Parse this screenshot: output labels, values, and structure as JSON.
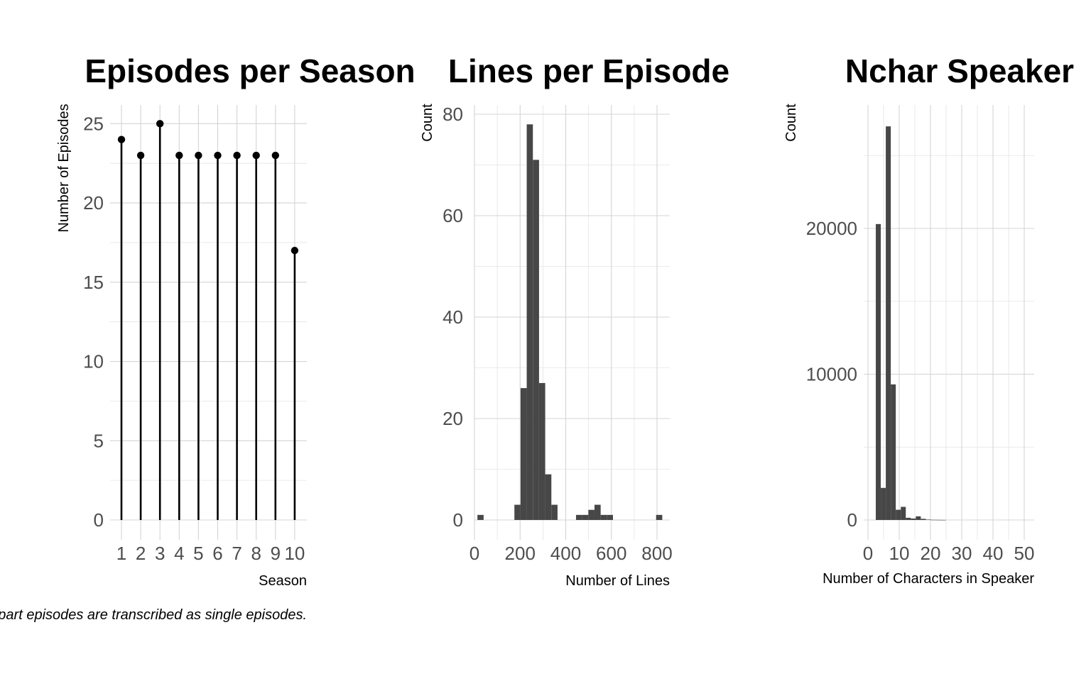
{
  "caption": "-part episodes are transcribed as single episodes.",
  "chart_data": [
    {
      "type": "lollipop",
      "title": "Episodes per Season",
      "xlabel": "Season",
      "ylabel": "Number of Episodes",
      "categories": [
        "1",
        "2",
        "3",
        "4",
        "5",
        "6",
        "7",
        "8",
        "9",
        "10"
      ],
      "values": [
        24,
        23,
        25,
        23,
        23,
        23,
        23,
        23,
        23,
        17
      ],
      "yticks": [
        0,
        5,
        10,
        15,
        20,
        25
      ],
      "ylim": [
        0,
        26
      ],
      "grid": true
    },
    {
      "type": "bar",
      "subtype": "histogram",
      "title": "Lines per Episode",
      "xlabel": "Number of Lines",
      "ylabel": "Count",
      "bins": [
        {
          "x0": 13,
          "x1": 40,
          "count": 1
        },
        {
          "x0": 175,
          "x1": 202,
          "count": 3
        },
        {
          "x0": 202,
          "x1": 229,
          "count": 26
        },
        {
          "x0": 229,
          "x1": 256,
          "count": 78
        },
        {
          "x0": 256,
          "x1": 283,
          "count": 71
        },
        {
          "x0": 283,
          "x1": 310,
          "count": 27
        },
        {
          "x0": 310,
          "x1": 337,
          "count": 9
        },
        {
          "x0": 337,
          "x1": 364,
          "count": 3
        },
        {
          "x0": 445,
          "x1": 472,
          "count": 1
        },
        {
          "x0": 472,
          "x1": 499,
          "count": 1
        },
        {
          "x0": 499,
          "x1": 526,
          "count": 2
        },
        {
          "x0": 526,
          "x1": 553,
          "count": 3
        },
        {
          "x0": 553,
          "x1": 580,
          "count": 1
        },
        {
          "x0": 580,
          "x1": 607,
          "count": 1
        },
        {
          "x0": 796,
          "x1": 823,
          "count": 1
        }
      ],
      "xticks": [
        0,
        200,
        400,
        600,
        800
      ],
      "yticks": [
        0,
        20,
        40,
        60,
        80
      ],
      "xlim": [
        0,
        850
      ],
      "ylim": [
        0,
        82
      ],
      "grid": true
    },
    {
      "type": "bar",
      "subtype": "histogram",
      "title": "Nchar Speaker",
      "xlabel": "Number of Characters in Speaker",
      "ylabel": "Count",
      "bins": [
        {
          "x0": 2.5,
          "x1": 4.1,
          "count": 20300
        },
        {
          "x0": 4.1,
          "x1": 5.7,
          "count": 2200
        },
        {
          "x0": 5.7,
          "x1": 7.3,
          "count": 27000
        },
        {
          "x0": 7.3,
          "x1": 8.9,
          "count": 9300
        },
        {
          "x0": 8.9,
          "x1": 10.5,
          "count": 700
        },
        {
          "x0": 10.5,
          "x1": 12.1,
          "count": 900
        },
        {
          "x0": 12.1,
          "x1": 13.7,
          "count": 150
        },
        {
          "x0": 13.7,
          "x1": 15.3,
          "count": 100
        },
        {
          "x0": 15.3,
          "x1": 16.9,
          "count": 250
        },
        {
          "x0": 16.9,
          "x1": 18.5,
          "count": 80
        },
        {
          "x0": 18.5,
          "x1": 20.1,
          "count": 30
        },
        {
          "x0": 20.1,
          "x1": 21.7,
          "count": 15
        },
        {
          "x0": 21.7,
          "x1": 23.3,
          "count": 10
        },
        {
          "x0": 23.3,
          "x1": 24.9,
          "count": 5
        }
      ],
      "xticks": [
        0,
        10,
        20,
        30,
        40,
        50
      ],
      "yticks": [
        0,
        10000,
        20000
      ],
      "xlim": [
        0,
        51
      ],
      "ylim": [
        0,
        28500
      ],
      "grid": true
    }
  ]
}
